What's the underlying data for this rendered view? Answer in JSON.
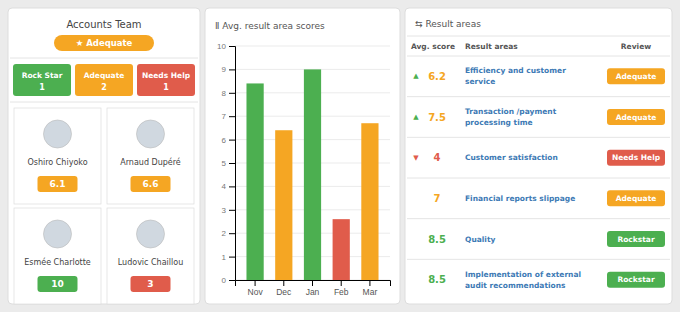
{
  "chart_data": {
    "type": "bar",
    "title": "Ⅱ Avg. result area scores",
    "categories": [
      "Nov",
      "Dec",
      "Jan",
      "Feb",
      "Mar"
    ],
    "values": [
      8.4,
      6.4,
      9.0,
      2.6,
      6.7
    ],
    "colors": [
      "#4caf50",
      "#f5a623",
      "#4caf50",
      "#e05c4b",
      "#f5a623"
    ],
    "ylim": [
      0,
      10
    ],
    "yticks": [
      0,
      1,
      2,
      3,
      4,
      5,
      6,
      7,
      8,
      9,
      10
    ],
    "grid": true
  },
  "team_panel": {
    "title": "Accounts Team",
    "badge": {
      "label": "★ Adequate",
      "color": "#f5a623"
    },
    "score_boxes": [
      {
        "label": "Rock Star",
        "count": 1,
        "color": "#4caf50"
      },
      {
        "label": "Adequate",
        "count": 2,
        "color": "#f5a623"
      },
      {
        "label": "Needs Help",
        "count": 1,
        "color": "#e05c4b"
      }
    ],
    "people": [
      {
        "name": "Oshiro Chiyoko",
        "score": 6.1,
        "color": "#f5a623"
      },
      {
        "name": "Arnaud Dupéré",
        "score": 6.6,
        "color": "#f5a623"
      },
      {
        "name": "Esmée Charlotte",
        "score": 10,
        "color": "#4caf50"
      },
      {
        "name": "Ludovic Chaillou",
        "score": 3,
        "color": "#e05c4b"
      }
    ]
  },
  "areas_panel": {
    "title": "⇆ Result areas",
    "header": [
      "Avg. score",
      "Result areas",
      "Review"
    ],
    "rows": [
      {
        "trend": "▲",
        "trend_color": "#4caf50",
        "score": 6.2,
        "score_color": "#f5a623",
        "area": [
          "Efficiency and customer",
          "service"
        ],
        "review": "Adequate",
        "review_color": "#f5a623"
      },
      {
        "trend": "▲",
        "trend_color": "#4caf50",
        "score": 7.5,
        "score_color": "#f5a623",
        "area": [
          "Transaction /payment",
          "processing time"
        ],
        "review": "Adequate",
        "review_color": "#f5a623"
      },
      {
        "trend": "▼",
        "trend_color": "#e05c4b",
        "score": 4,
        "score_color": "#e05c4b",
        "area": [
          "Customer satisfaction"
        ],
        "review": "Needs Help",
        "review_color": "#e05c4b"
      },
      {
        "score": 7,
        "score_color": "#f5a623",
        "area": [
          "Financial reports slippage"
        ],
        "review": "Adequate",
        "review_color": "#f5a623"
      },
      {
        "score": 8.5,
        "score_color": "#4caf50",
        "area": [
          "Quality"
        ],
        "review": "Rockstar",
        "review_color": "#4caf50"
      },
      {
        "score": 8.5,
        "score_color": "#4caf50",
        "area": [
          "Implementation of external",
          "audit recommendations"
        ],
        "review": "Rockstar",
        "review_color": "#4caf50"
      }
    ]
  }
}
